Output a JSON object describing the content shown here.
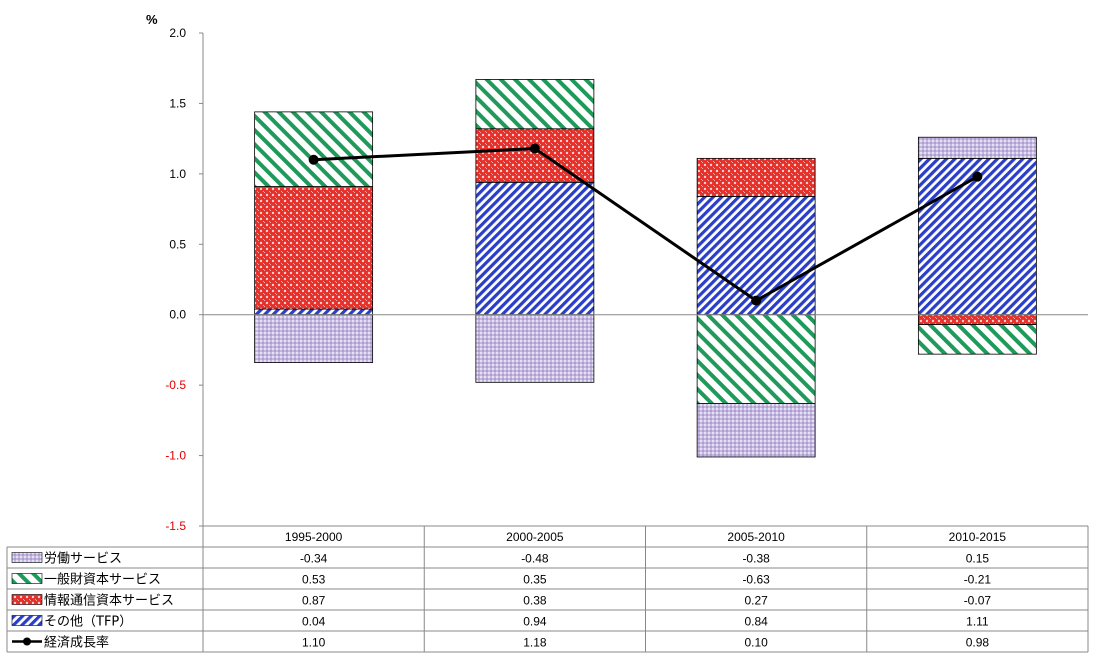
{
  "chart_data": {
    "type": "bar",
    "stacked": true,
    "unit": "%",
    "categories": [
      "1995-2000",
      "2000-2005",
      "2005-2010",
      "2010-2015"
    ],
    "ylim": [
      -1.5,
      2.0
    ],
    "yticks": [
      "2.0",
      "1.5",
      "1.0",
      "0.5",
      "0.0",
      "-0.5",
      "-1.0",
      "-1.5"
    ],
    "negative_tick_color": "#e00000",
    "series": [
      {
        "name": "労働サービス",
        "type": "bar",
        "pattern": "dots",
        "color": "#a898cc",
        "values": [
          -0.34,
          -0.48,
          -0.38,
          0.15
        ]
      },
      {
        "name": "一般財資本サービス",
        "type": "bar",
        "pattern": "diagonal",
        "color": "#1f9a5a",
        "values": [
          0.53,
          0.35,
          -0.63,
          -0.21
        ]
      },
      {
        "name": "情報通信資本サービス",
        "type": "bar",
        "pattern": "checker",
        "color": "#e8302a",
        "values": [
          0.87,
          0.38,
          0.27,
          -0.07
        ]
      },
      {
        "name": "その他（TFP）",
        "type": "bar",
        "pattern": "diagonal",
        "color": "#2a3ec8",
        "values": [
          0.04,
          0.94,
          0.84,
          1.11
        ]
      },
      {
        "name": "経済成長率",
        "type": "line",
        "color": "#000000",
        "values": [
          1.1,
          1.18,
          0.1,
          0.98
        ]
      }
    ],
    "data_table": {
      "rows": [
        [
          "-0.34",
          "-0.48",
          "-0.38",
          "0.15"
        ],
        [
          "0.53",
          "0.35",
          "-0.63",
          "-0.21"
        ],
        [
          "0.87",
          "0.38",
          "0.27",
          "-0.07"
        ],
        [
          "0.04",
          "0.94",
          "0.84",
          "1.11"
        ],
        [
          "1.10",
          "1.18",
          "0.10",
          "0.98"
        ]
      ]
    }
  }
}
